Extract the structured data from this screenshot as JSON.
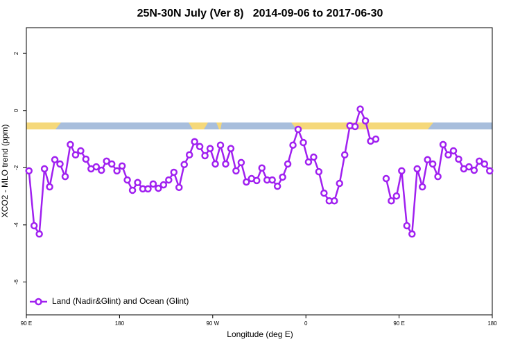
{
  "chart_data": {
    "type": "line",
    "title": "25N-30N July (Ver 8)   2014-09-06 to 2017-06-30",
    "x_label": "Longitude (deg E)",
    "y_label": "XCO2 - MLO trend (ppm)",
    "xlim": [
      90,
      540
    ],
    "ylim": [
      -7.15,
      2.9
    ],
    "xticks": [
      {
        "value": 90,
        "label": "90 E"
      },
      180,
      {
        "value": 270,
        "label": "90 W"
      },
      {
        "value": 360,
        "label": "0"
      },
      {
        "value": 450,
        "label": "90 E"
      },
      {
        "value": 540,
        "label": "180"
      }
    ],
    "yticks": [
      2,
      0,
      -2,
      -4,
      -6
    ],
    "legend": "bottom-left",
    "x": [
      92.5,
      97.5,
      102.5,
      107.5,
      112.5,
      117.5,
      122.5,
      127.5,
      132.5,
      137.5,
      142.5,
      147.5,
      152.5,
      157.5,
      162.5,
      167.5,
      172.5,
      177.5,
      182.5,
      187.5,
      192.5,
      197.5,
      202.5,
      207.5,
      212.5,
      217.5,
      222.5,
      227.5,
      232.5,
      237.5,
      242.5,
      247.5,
      252.5,
      257.5,
      262.5,
      267.5,
      272.5,
      277.5,
      282.5,
      287.5,
      292.5,
      297.5,
      302.5,
      307.5,
      312.5,
      317.5,
      322.5,
      327.5,
      332.5,
      337.5,
      342.5,
      347.5,
      352.5,
      357.5,
      362.5,
      367.5,
      372.5,
      377.5,
      382.5,
      387.5,
      392.5,
      397.5,
      402.5,
      407.5,
      412.5,
      417.5,
      422.5,
      427.5,
      432.5,
      437.5,
      442.5,
      447.5,
      452.5,
      457.5,
      462.5,
      467.5,
      472.5,
      477.5,
      482.5,
      487.5,
      492.5,
      497.5,
      502.5,
      507.5,
      512.5,
      517.5,
      522.5,
      527.5,
      532.5,
      537.5
    ],
    "series": [
      {
        "name": "Land (Nadir&Glint) and Ocean (Glint)",
        "color": "#a020f0",
        "values": [
          -2.11,
          -4.03,
          -4.32,
          -2.04,
          -2.67,
          -1.72,
          -1.87,
          -2.31,
          -1.19,
          -1.55,
          -1.41,
          -1.7,
          -2.04,
          -1.97,
          -2.09,
          -1.77,
          -1.87,
          -2.11,
          -1.94,
          -2.43,
          -2.79,
          -2.52,
          -2.74,
          -2.74,
          -2.57,
          -2.72,
          -2.6,
          -2.43,
          -2.16,
          -2.69,
          -1.89,
          -1.55,
          -1.09,
          -1.26,
          -1.58,
          -1.33,
          -1.87,
          -1.21,
          -1.87,
          -1.33,
          -2.11,
          -1.82,
          -2.5,
          -2.38,
          -2.45,
          -2.01,
          -2.43,
          -2.43,
          -2.65,
          -2.33,
          -1.87,
          -1.21,
          -0.66,
          -1.12,
          -1.8,
          -1.63,
          -2.14,
          -2.89,
          -3.16,
          -3.16,
          -2.55,
          -1.55,
          -0.53,
          -0.56,
          0.05,
          -0.36,
          -1.07,
          -1.0,
          null,
          -2.38,
          -3.16,
          -2.99,
          -2.11,
          -4.03,
          -4.32,
          -2.04,
          -2.67,
          -1.72,
          -1.87,
          -2.31,
          -1.19,
          -1.55,
          -1.41,
          -1.7,
          -2.04,
          -1.97,
          -2.09,
          -1.77,
          -1.87,
          -2.11
        ]
      }
    ]
  }
}
